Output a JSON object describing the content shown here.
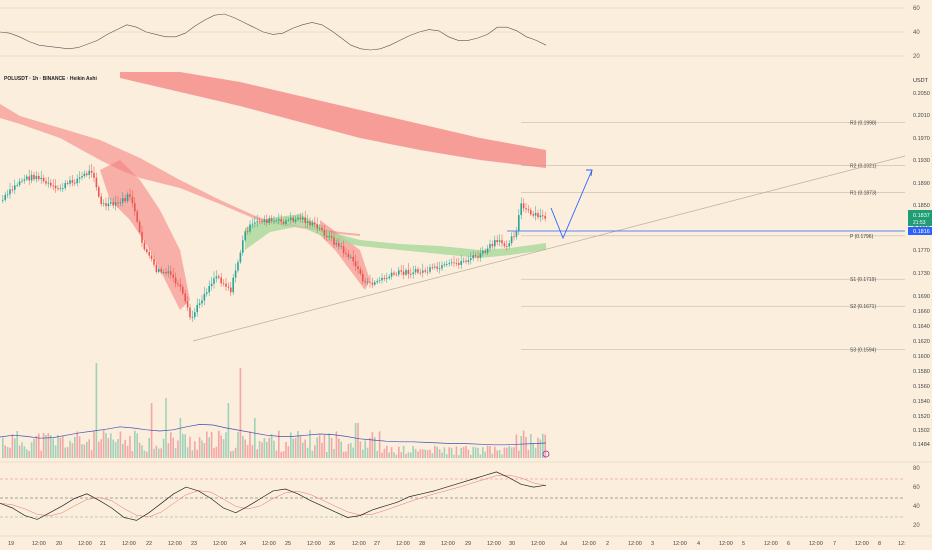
{
  "header": {
    "symbol_line": "POLUSDT · 1h · BINANCE · Heikin Ashi",
    "currency": "USDT"
  },
  "colors": {
    "background": "#fbeedd",
    "up_candle": "#26a69a",
    "down_candle": "#ef5350",
    "cloud_red": "#f47b7b",
    "cloud_green": "#a8d89a",
    "projection": "#2962ff",
    "support_line": "#2962ff",
    "price_badge_bg": "#1f9d74",
    "support_badge_bg": "#2962ff",
    "volume_ma": "#3f51b5"
  },
  "oscillator_top": {
    "axis_labels": [
      "60",
      "40",
      "20"
    ],
    "values": [
      40,
      39,
      36,
      32,
      29,
      28,
      27,
      26,
      27,
      30,
      33,
      38,
      42,
      46,
      44,
      40,
      38,
      36,
      36,
      39,
      45,
      50,
      54,
      55,
      52,
      48,
      44,
      40,
      38,
      39,
      43,
      46,
      48,
      46,
      41,
      35,
      29,
      26,
      25,
      26,
      29,
      33,
      37,
      40,
      42,
      41,
      36,
      33,
      33,
      35,
      38,
      44,
      44,
      41,
      36,
      33,
      29
    ]
  },
  "price_axis": {
    "labels": [
      "0.2050",
      "0.2010",
      "0.1970",
      "0.1930",
      "0.1890",
      "0.1850",
      "0.1810",
      "0.1770",
      "0.1730",
      "0.1690",
      "0.1660",
      "0.1640",
      "0.1620",
      "0.1600",
      "0.1580",
      "0.1560",
      "0.1540",
      "0.1520",
      "0.1502",
      "0.1484"
    ],
    "current_price": "0.1837",
    "current_countdown": "21:53",
    "support_price": "0.1816"
  },
  "pivots": [
    {
      "label": "R3 (0.1998)",
      "price": 0.1998
    },
    {
      "label": "R2 (0.1921)",
      "price": 0.1921
    },
    {
      "label": "R1 (0.1873)",
      "price": 0.1873
    },
    {
      "label": "P (0.1796)",
      "price": 0.1796
    },
    {
      "label": "S1 (0.1719)",
      "price": 0.1719
    },
    {
      "label": "S2 (0.1671)",
      "price": 0.1671
    },
    {
      "label": "S3 (0.1594)",
      "price": 0.1594
    }
  ],
  "volume": {
    "ma_values": [
      0.35,
      0.38,
      0.36,
      0.33,
      0.34,
      0.38,
      0.42,
      0.45,
      0.48,
      0.52,
      0.5,
      0.47,
      0.45,
      0.47,
      0.52,
      0.56,
      0.55,
      0.5,
      0.46,
      0.42,
      0.38,
      0.36,
      0.36,
      0.38,
      0.4,
      0.39,
      0.36,
      0.32,
      0.3,
      0.28,
      0.27,
      0.27,
      0.26,
      0.25,
      0.24,
      0.24,
      0.23,
      0.22,
      0.22,
      0.23,
      0.24,
      0.25
    ]
  },
  "rsi": {
    "axis_labels": [
      "80",
      "60",
      "40",
      "20"
    ],
    "overbought": 70,
    "oversold": 30,
    "mid": 50,
    "values": [
      45,
      40,
      32,
      28,
      35,
      42,
      50,
      55,
      48,
      40,
      30,
      27,
      35,
      45,
      55,
      62,
      58,
      50,
      40,
      35,
      42,
      50,
      58,
      60,
      55,
      48,
      42,
      36,
      30,
      32,
      38,
      42,
      46,
      52,
      55,
      58,
      62,
      66,
      70,
      74,
      78,
      72,
      65,
      62,
      64
    ]
  },
  "time_axis": {
    "labels": [
      "19",
      "12:00",
      "20",
      "12:00",
      "21",
      "12:00",
      "22",
      "12:00",
      "23",
      "12:00",
      "24",
      "12:00",
      "25",
      "12:00",
      "26",
      "12:00",
      "27",
      "12:00",
      "28",
      "12:00",
      "29",
      "12:00",
      "30",
      "12:00",
      "Jul",
      "12:00",
      "2",
      "12:00",
      "3",
      "12:00",
      "4",
      "12:00",
      "5",
      "12:00",
      "6",
      "12:00",
      "7",
      "12:00",
      "8",
      "12:"
    ]
  },
  "chart_data": {
    "type": "line",
    "title": "POLUSDT · 1h · BINANCE · Heikin Ashi",
    "xlabel": "",
    "ylabel": "USDT",
    "ylim": [
      0.1484,
      0.205
    ],
    "x": [
      "19",
      "20",
      "21",
      "22",
      "23",
      "24",
      "25",
      "26",
      "27",
      "28",
      "29",
      "30"
    ],
    "series": [
      {
        "values": [
          0.188,
          0.1878,
          0.185,
          0.171,
          0.17,
          0.182,
          0.1835,
          0.177,
          0.1745,
          0.176,
          0.1785,
          0.1835
        ]
      }
    ]
  }
}
